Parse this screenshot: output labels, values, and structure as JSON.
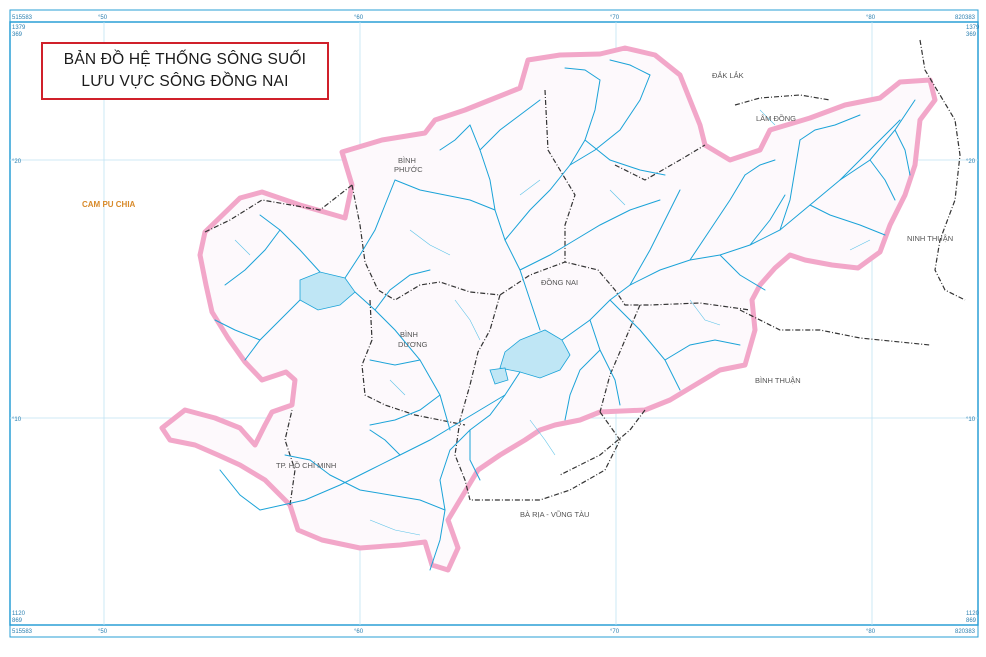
{
  "title": {
    "line1": "BẢN ĐỒ HỆ THỐNG SÔNG SUỐI",
    "line2": "LƯU VỰC SÔNG ĐỒNG NAI"
  },
  "frame": {
    "corner_top_left_x": "515583",
    "corner_top_left_y1": "1379",
    "corner_top_left_y2": "369",
    "corner_top_right_x": "820383",
    "corner_top_right_y1": "1379",
    "corner_top_right_y2": "369",
    "corner_bottom_left_x": "515583",
    "corner_bottom_left_y1": "1120",
    "corner_bottom_left_y2": "869",
    "corner_bottom_right_x": "820383",
    "corner_bottom_right_y1": "1120",
    "corner_bottom_right_y2": "869",
    "ticks_top": [
      "°50",
      "°60",
      "°70",
      "°80"
    ],
    "ticks_bottom": [
      "°50",
      "°60",
      "°70",
      "°80"
    ],
    "ticks_left": [
      "°20",
      "°10"
    ],
    "ticks_right": [
      "°20",
      "°10"
    ]
  },
  "regions": {
    "cambodia": "CAM PU CHIA",
    "binh_phuoc_1": "BÌNH",
    "binh_phuoc_2": "PHƯỚC",
    "dak_lak": "ĐẮK LẮK",
    "lam_dong": "LÂM ĐỒNG",
    "ninh_thuan": "NINH THUẬN",
    "dong_nai": "ĐỒNG NAI",
    "binh_duong_1": "BÌNH",
    "binh_duong_2": "DƯƠNG",
    "binh_thuan": "BÌNH THUẬN",
    "tp_hcm": "TP. HỒ CHÍ MINH",
    "ba_ria_vung_tau": "BÀ RỊA - VŨNG TÀU"
  },
  "colors": {
    "basin_border": "#f2a7c9",
    "river": "#1ba3d8",
    "lake": "#bfe6f5",
    "admin_boundary": "#333333",
    "graticule": "#bfe3f3",
    "frame": "#2a9fd6",
    "title_border": "#d0202a",
    "cambodia_label": "#d88a2a"
  }
}
